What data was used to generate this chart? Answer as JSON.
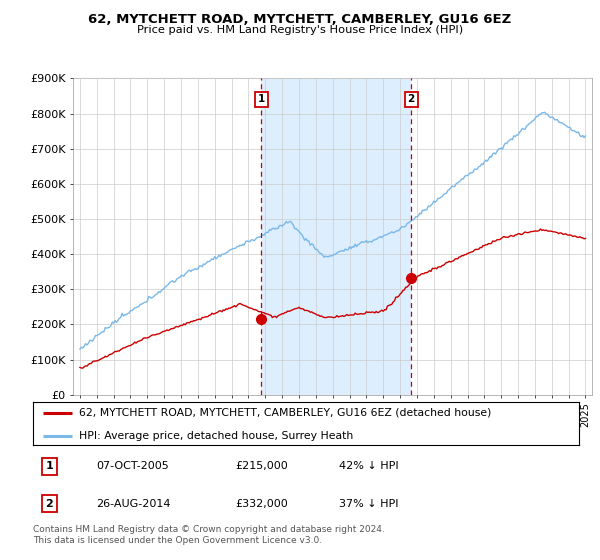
{
  "title": "62, MYTCHETT ROAD, MYTCHETT, CAMBERLEY, GU16 6EZ",
  "subtitle": "Price paid vs. HM Land Registry's House Price Index (HPI)",
  "legend_line1": "62, MYTCHETT ROAD, MYTCHETT, CAMBERLEY, GU16 6EZ (detached house)",
  "legend_line2": "HPI: Average price, detached house, Surrey Heath",
  "sale1_date": "07-OCT-2005",
  "sale1_price": "£215,000",
  "sale1_pct": "42% ↓ HPI",
  "sale2_date": "26-AUG-2014",
  "sale2_price": "£332,000",
  "sale2_pct": "37% ↓ HPI",
  "footnote": "Contains HM Land Registry data © Crown copyright and database right 2024.\nThis data is licensed under the Open Government Licence v3.0.",
  "hpi_color": "#7ab8e8",
  "price_color": "#cc0000",
  "sale1_x": 2005.77,
  "sale1_y": 215000,
  "sale2_x": 2014.65,
  "sale2_y": 332000,
  "vline1_x": 2005.77,
  "vline2_x": 2014.65,
  "ylim": [
    0,
    900000
  ],
  "xlim_left": 1994.6,
  "xlim_right": 2025.4,
  "chart_bg": "#ffffff",
  "shade_color": "#ddeeff"
}
